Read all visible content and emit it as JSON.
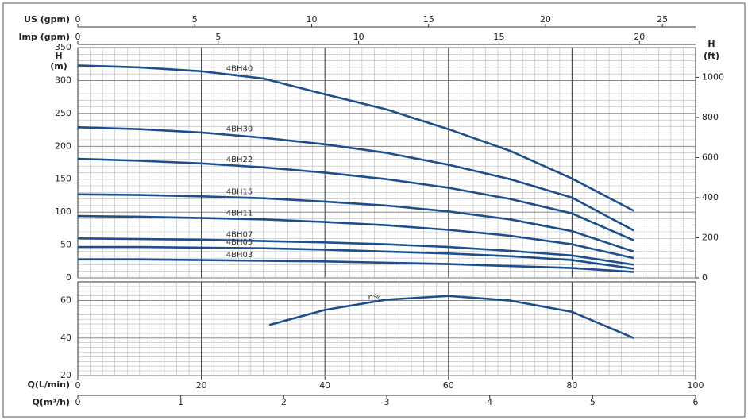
{
  "chart_data": [
    {
      "type": "line",
      "x": [
        0,
        10,
        20,
        30,
        40,
        50,
        60,
        70,
        80,
        90
      ],
      "xlim": [
        0,
        100
      ],
      "xticks": [
        0,
        20,
        40,
        60,
        80,
        100
      ],
      "ylim": [
        0,
        350
      ],
      "yticks": [
        0,
        50,
        100,
        150,
        200,
        250,
        300,
        350
      ],
      "ylabel": [
        "H",
        "(m)"
      ],
      "y2lim": [
        0,
        1148
      ],
      "y2ticks": [
        0,
        200,
        400,
        600,
        800,
        1000
      ],
      "y2label": [
        "H",
        "(ft)"
      ],
      "grid": true,
      "top_axes": [
        {
          "label": "US (gpm)",
          "xlim": [
            0,
            26.42
          ],
          "xticks": [
            0,
            5,
            10,
            15,
            20,
            25
          ]
        },
        {
          "label": "Imp (gpm)",
          "xlim": [
            0,
            22
          ],
          "xticks": [
            0,
            5,
            10,
            15,
            20
          ]
        }
      ],
      "series": [
        {
          "name": "4BH40",
          "color": "#1d4f8e",
          "values": [
            323,
            320,
            314,
            303,
            279,
            256,
            226,
            193,
            151,
            102
          ]
        },
        {
          "name": "4BH30",
          "color": "#1d4f8e",
          "values": [
            229,
            226,
            221,
            213,
            203,
            190,
            172,
            150,
            122,
            72
          ]
        },
        {
          "name": "4BH22",
          "color": "#1d4f8e",
          "values": [
            181,
            178,
            174,
            168,
            160,
            150,
            137,
            120,
            98,
            57
          ]
        },
        {
          "name": "4BH15",
          "color": "#1d4f8e",
          "values": [
            127,
            126,
            124,
            121,
            116,
            110,
            101,
            89,
            71,
            40
          ]
        },
        {
          "name": "4BH11",
          "color": "#1d4f8e",
          "values": [
            94,
            93,
            91,
            89,
            85,
            80,
            73,
            64,
            51,
            30
          ]
        },
        {
          "name": "4BH07",
          "color": "#1d4f8e",
          "values": [
            60,
            59,
            58,
            56,
            54,
            51,
            47,
            41,
            34,
            20
          ]
        },
        {
          "name": "4BH05",
          "color": "#1d4f8e",
          "values": [
            47,
            47,
            46,
            45,
            43,
            40,
            37,
            33,
            27,
            14
          ]
        },
        {
          "name": "4BH03",
          "color": "#1d4f8e",
          "values": [
            28,
            28,
            27,
            26,
            25,
            23,
            21,
            18,
            15,
            9
          ]
        }
      ]
    },
    {
      "type": "line",
      "x": [
        31,
        40,
        50,
        60,
        70,
        80,
        90
      ],
      "xlim": [
        0,
        100
      ],
      "xticks": [
        0,
        20,
        40,
        60,
        80,
        100
      ],
      "xlabel": "Q(L/min)",
      "ylim": [
        20,
        70
      ],
      "yticks": [
        20,
        40,
        60
      ],
      "grid": true,
      "bottom_axes": [
        {
          "label": "Q(m³/h)",
          "xlim": [
            0,
            6
          ],
          "xticks": [
            0,
            1,
            2,
            3,
            4,
            5,
            6
          ]
        }
      ],
      "series": [
        {
          "name": "η%",
          "color": "#1d4f8e",
          "values": [
            47,
            55,
            60.5,
            62.5,
            60,
            54,
            40
          ]
        }
      ]
    }
  ]
}
